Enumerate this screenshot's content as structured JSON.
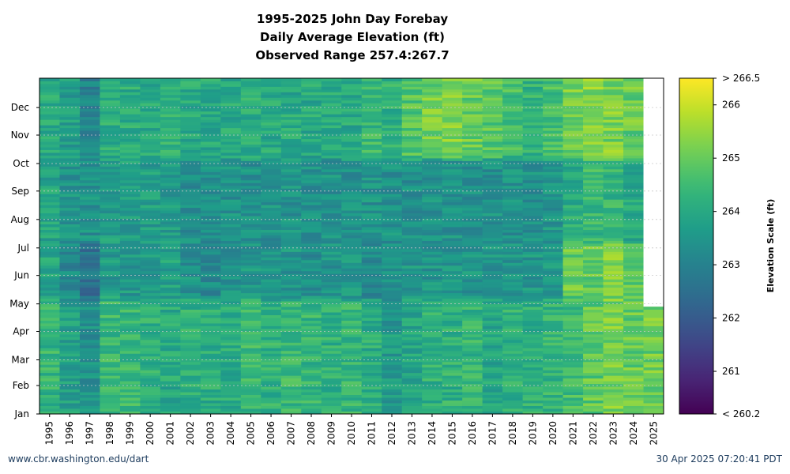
{
  "title": {
    "line1": "1995-2025 John Day Forebay",
    "line2": "Daily Average Elevation (ft)",
    "line3": "Observed Range 257.4:267.7"
  },
  "footer": {
    "left": "www.cbr.washington.edu/dart",
    "right": "30 Apr 2025 07:20:41 PDT"
  },
  "colors": {
    "colormap": "viridis",
    "no_data": "#ffffff",
    "grid": "#c8c8c8"
  },
  "chart_data": {
    "type": "heatmap",
    "years": [
      "1995",
      "1996",
      "1997",
      "1998",
      "1999",
      "2000",
      "2001",
      "2002",
      "2003",
      "2004",
      "2005",
      "2006",
      "2007",
      "2008",
      "2009",
      "2010",
      "2011",
      "2012",
      "2013",
      "2014",
      "2015",
      "2016",
      "2017",
      "2018",
      "2019",
      "2020",
      "2021",
      "2022",
      "2023",
      "2024",
      "2025"
    ],
    "months": [
      "Jan",
      "Feb",
      "Mar",
      "Apr",
      "May",
      "Jun",
      "Jul",
      "Aug",
      "Sep",
      "Oct",
      "Nov",
      "Dec"
    ],
    "month_start_day": [
      1,
      32,
      60,
      91,
      121,
      152,
      182,
      213,
      244,
      274,
      305,
      335
    ],
    "days_in_year": 366,
    "data_end_2025_day": 120,
    "colorbar": {
      "title": "Elevation Scale (ft)",
      "min": 260.2,
      "max": 266.5,
      "min_label": "< 260.2",
      "max_label": "> 266.5",
      "ticks": [
        "261",
        "262",
        "263",
        "264",
        "265",
        "266"
      ]
    },
    "approx_period_means_ft": {
      "note_periods": [
        "Jan-Apr",
        "May-Jun",
        "Jul-Sep",
        "Oct-Dec"
      ],
      "1995": [
        264.3,
        263.9,
        263.9,
        264.0
      ],
      "1996": [
        263.8,
        263.2,
        263.5,
        263.7
      ],
      "1997": [
        263.4,
        262.6,
        263.4,
        263.0
      ],
      "1998": [
        264.4,
        263.6,
        263.7,
        264.1
      ],
      "1999": [
        264.4,
        263.6,
        263.7,
        264.1
      ],
      "2000": [
        264.2,
        263.6,
        263.7,
        264.0
      ],
      "2001": [
        264.0,
        263.8,
        263.6,
        264.2
      ],
      "2002": [
        264.2,
        263.4,
        263.3,
        264.0
      ],
      "2003": [
        264.1,
        263.2,
        263.3,
        264.0
      ],
      "2004": [
        264.1,
        263.4,
        263.4,
        264.0
      ],
      "2005": [
        264.4,
        263.5,
        263.4,
        264.1
      ],
      "2006": [
        264.2,
        263.4,
        263.4,
        264.0
      ],
      "2007": [
        264.4,
        263.5,
        263.4,
        264.0
      ],
      "2008": [
        264.3,
        263.3,
        263.4,
        264.0
      ],
      "2009": [
        264.2,
        263.4,
        263.4,
        264.0
      ],
      "2010": [
        264.3,
        263.5,
        263.4,
        264.0
      ],
      "2011": [
        264.1,
        263.1,
        263.4,
        264.4
      ],
      "2012": [
        263.6,
        263.4,
        263.4,
        264.2
      ],
      "2013": [
        263.9,
        263.5,
        263.4,
        264.8
      ],
      "2014": [
        264.2,
        263.5,
        263.4,
        265.1
      ],
      "2015": [
        264.2,
        263.5,
        263.4,
        265.3
      ],
      "2016": [
        264.3,
        263.5,
        263.4,
        265.0
      ],
      "2017": [
        263.9,
        263.5,
        263.4,
        264.8
      ],
      "2018": [
        264.2,
        263.4,
        263.4,
        264.6
      ],
      "2019": [
        264.2,
        263.5,
        263.4,
        264.3
      ],
      "2020": [
        264.3,
        263.6,
        263.5,
        264.6
      ],
      "2021": [
        264.5,
        265.0,
        264.1,
        265.1
      ],
      "2022": [
        264.9,
        265.0,
        264.4,
        265.3
      ],
      "2023": [
        265.2,
        265.2,
        264.3,
        265.2
      ],
      "2024": [
        265.0,
        265.0,
        264.0,
        265.0
      ],
      "2025": [
        265.1,
        null,
        null,
        null
      ]
    }
  }
}
